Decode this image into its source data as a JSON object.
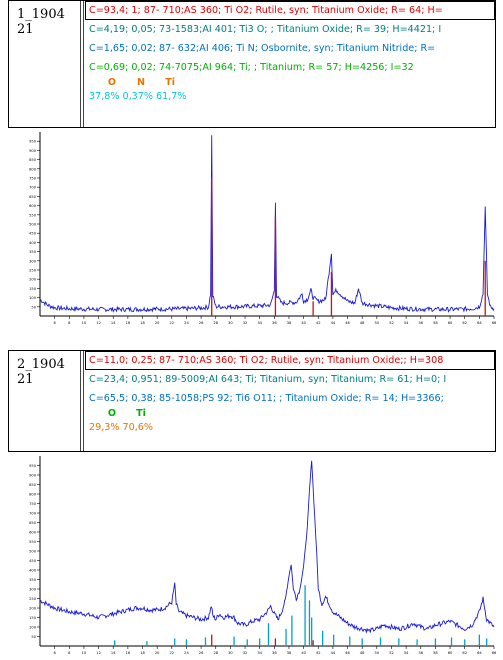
{
  "colors": {
    "pattern": "#1a1ad6",
    "stick_red": "#cc1010",
    "stick_cyan": "#00a2c8",
    "axis": "#000000",
    "phase_red": "#e00000",
    "phase_teal": "#008080",
    "phase_blue": "#0070c0",
    "phase_green": "#00b000",
    "elem_orange": "#e07800",
    "pct_cyan": "#00c8d8",
    "pct_orange": "#e07800"
  },
  "samples": [
    {
      "id_lines": [
        "1_1904",
        "21"
      ],
      "phases": [
        {
          "text": "C=93,4; 1;  87- 710;AS 360; Ti O2; Rutile, syn; Titanium Oxide; R= 64; H=",
          "color": "#e00000",
          "selected": true
        },
        {
          "text": "C=4,19; 0,05;  73-1583;AI 401; Ti3 O; ; Titanium Oxide; R= 39; H=4421; I",
          "color": "#008080",
          "selected": false
        },
        {
          "text": "C=1,65; 0,02;  87- 632;AI 406; Ti N; Osbornite, syn; Titanium Nitride; R=",
          "color": "#0070c0",
          "selected": false
        },
        {
          "text": "C=0,69; 0,02;  74-7075;AI 964; Ti; ; Titanium; R= 57; H=4256; I=32",
          "color": "#00b000",
          "selected": false
        }
      ],
      "elements": [
        "O",
        "N",
        "Ti"
      ],
      "percents": "37,8% 0,37% 61,7%",
      "percents_color": "#00c8d8"
    },
    {
      "id_lines": [
        "2_1904",
        "21"
      ],
      "phases": [
        {
          "text": "C=11,0; 0,25;  87- 710;AS 360; Ti O2; Rutile, syn; Titanium Oxide;; H=308",
          "color": "#e00000",
          "selected": true
        },
        {
          "text": "C=23,4; 0,951;  89-5009;AI 643; Ti; Titanium, syn; Titanium; R= 61; H=0; I",
          "color": "#008080",
          "selected": false
        },
        {
          "text": "C=65,5; 0,38;  85-1058;PS 92; Ti6 O11; ; Titanium Oxide; R= 14; H=3366;",
          "color": "#0070c0",
          "selected": false
        }
      ],
      "elements": [
        "O",
        "Ti"
      ],
      "percents": "29,3% 70,6%",
      "percents_color": "#e07800"
    }
  ],
  "chart_data": [
    {
      "type": "line",
      "xlim": [
        4,
        66
      ],
      "ylim": [
        0,
        1000
      ],
      "x_ticks": [
        "6",
        "8",
        "10",
        "12",
        "14",
        "16",
        "18",
        "20",
        "22",
        "24",
        "26",
        "28",
        "30",
        "32",
        "34",
        "36",
        "38",
        "40",
        "42",
        "44",
        "46",
        "48",
        "50",
        "52",
        "54",
        "56",
        "58",
        "60",
        "62",
        "64",
        "66"
      ],
      "y_ticks": [
        "50",
        "100",
        "150",
        "200",
        "250",
        "300",
        "350",
        "400",
        "450",
        "500",
        "550",
        "600",
        "650",
        "700",
        "750",
        "800",
        "850",
        "900",
        "950"
      ],
      "series": [
        {
          "points": [
            [
              4,
              90
            ],
            [
              5,
              60
            ],
            [
              6,
              45
            ],
            [
              7,
              42
            ],
            [
              8,
              40
            ],
            [
              10,
              38
            ],
            [
              12,
              36
            ],
            [
              14,
              36
            ],
            [
              16,
              36
            ],
            [
              18,
              37
            ],
            [
              20,
              38
            ],
            [
              22,
              38
            ],
            [
              24,
              40
            ],
            [
              26,
              44
            ],
            [
              27,
              48
            ],
            [
              27.3,
              120
            ],
            [
              27.45,
              980
            ],
            [
              27.6,
              110
            ],
            [
              28,
              52
            ],
            [
              29,
              50
            ],
            [
              30,
              50
            ],
            [
              32,
              52
            ],
            [
              34,
              55
            ],
            [
              35.5,
              60
            ],
            [
              36,
              140
            ],
            [
              36.15,
              620
            ],
            [
              36.3,
              110
            ],
            [
              37,
              70
            ],
            [
              38,
              72
            ],
            [
              39,
              75
            ],
            [
              39.8,
              120
            ],
            [
              40,
              80
            ],
            [
              40.5,
              90
            ],
            [
              41,
              140
            ],
            [
              41.3,
              100
            ],
            [
              42,
              80
            ],
            [
              43,
              90
            ],
            [
              43.8,
              340
            ],
            [
              44,
              120
            ],
            [
              44.5,
              140
            ],
            [
              45,
              120
            ],
            [
              46,
              80
            ],
            [
              47,
              70
            ],
            [
              47.5,
              150
            ],
            [
              48,
              70
            ],
            [
              50,
              55
            ],
            [
              52,
              45
            ],
            [
              54,
              40
            ],
            [
              56,
              38
            ],
            [
              58,
              36
            ],
            [
              60,
              36
            ],
            [
              62,
              38
            ],
            [
              63,
              40
            ],
            [
              64,
              50
            ],
            [
              64.5,
              120
            ],
            [
              64.8,
              595
            ],
            [
              65.1,
              120
            ],
            [
              65.5,
              50
            ],
            [
              66,
              40
            ]
          ]
        }
      ],
      "sticks": [
        {
          "x": 27.45,
          "y": 750,
          "color": "red"
        },
        {
          "x": 36.15,
          "y": 540,
          "color": "red"
        },
        {
          "x": 41.3,
          "y": 80,
          "color": "red"
        },
        {
          "x": 43.8,
          "y": 240,
          "color": "red"
        },
        {
          "x": 64.8,
          "y": 300,
          "color": "red"
        }
      ]
    },
    {
      "type": "line",
      "xlim": [
        4,
        66
      ],
      "ylim": [
        0,
        1000
      ],
      "x_ticks": [
        "6",
        "8",
        "10",
        "12",
        "14",
        "16",
        "18",
        "20",
        "22",
        "24",
        "26",
        "28",
        "30",
        "32",
        "34",
        "36",
        "38",
        "40",
        "42",
        "44",
        "46",
        "48",
        "50",
        "52",
        "54",
        "56",
        "58",
        "60",
        "62",
        "64",
        "66"
      ],
      "y_ticks": [
        "50",
        "100",
        "150",
        "200",
        "250",
        "300",
        "350",
        "400",
        "450",
        "500",
        "550",
        "600",
        "650",
        "700",
        "750",
        "800",
        "850",
        "900",
        "950"
      ],
      "series": [
        {
          "points": [
            [
              4,
              240
            ],
            [
              5,
              220
            ],
            [
              6,
              200
            ],
            [
              7,
              190
            ],
            [
              8,
              180
            ],
            [
              9,
              175
            ],
            [
              10,
              170
            ],
            [
              11,
              160
            ],
            [
              12,
              150
            ],
            [
              13,
              160
            ],
            [
              14,
              170
            ],
            [
              15,
              180
            ],
            [
              16,
              190
            ],
            [
              17,
              200
            ],
            [
              18,
              200
            ],
            [
              19,
              190
            ],
            [
              20,
              190
            ],
            [
              21,
              200
            ],
            [
              22,
              230
            ],
            [
              22.4,
              330
            ],
            [
              22.6,
              220
            ],
            [
              23,
              180
            ],
            [
              24,
              160
            ],
            [
              25,
              150
            ],
            [
              26,
              140
            ],
            [
              27,
              150
            ],
            [
              27.4,
              210
            ],
            [
              27.6,
              160
            ],
            [
              28,
              140
            ],
            [
              28.5,
              170
            ],
            [
              29,
              150
            ],
            [
              30,
              160
            ],
            [
              30.5,
              150
            ],
            [
              31,
              120
            ],
            [
              32,
              110
            ],
            [
              33,
              130
            ],
            [
              34,
              140
            ],
            [
              35,
              180
            ],
            [
              35.5,
              210
            ],
            [
              36,
              170
            ],
            [
              36.5,
              140
            ],
            [
              37,
              180
            ],
            [
              37.5,
              240
            ],
            [
              38,
              370
            ],
            [
              38.3,
              430
            ],
            [
              38.6,
              300
            ],
            [
              39,
              250
            ],
            [
              39.5,
              300
            ],
            [
              40,
              420
            ],
            [
              40.5,
              620
            ],
            [
              40.8,
              820
            ],
            [
              41.1,
              980
            ],
            [
              41.4,
              760
            ],
            [
              41.8,
              480
            ],
            [
              42,
              300
            ],
            [
              42.5,
              220
            ],
            [
              43,
              260
            ],
            [
              43.5,
              220
            ],
            [
              44,
              180
            ],
            [
              45,
              150
            ],
            [
              46,
              120
            ],
            [
              47,
              100
            ],
            [
              48,
              90
            ],
            [
              49,
              80
            ],
            [
              50,
              90
            ],
            [
              51,
              110
            ],
            [
              52,
              100
            ],
            [
              53,
              90
            ],
            [
              54,
              100
            ],
            [
              55,
              120
            ],
            [
              56,
              100
            ],
            [
              57,
              90
            ],
            [
              58,
              110
            ],
            [
              59,
              120
            ],
            [
              60,
              130
            ],
            [
              61,
              110
            ],
            [
              62,
              90
            ],
            [
              63,
              110
            ],
            [
              64,
              180
            ],
            [
              64.5,
              250
            ],
            [
              65,
              140
            ],
            [
              66,
              100
            ]
          ]
        }
      ],
      "sticks": [
        {
          "x": 27.45,
          "y": 60,
          "color": "red"
        },
        {
          "x": 36.15,
          "y": 40,
          "color": "red"
        },
        {
          "x": 41.3,
          "y": 30,
          "color": "red"
        },
        {
          "x": 14.2,
          "y": 30,
          "color": "cyan"
        },
        {
          "x": 18.6,
          "y": 25,
          "color": "cyan"
        },
        {
          "x": 22.4,
          "y": 40,
          "color": "cyan"
        },
        {
          "x": 24.0,
          "y": 35,
          "color": "cyan"
        },
        {
          "x": 26.6,
          "y": 45,
          "color": "cyan"
        },
        {
          "x": 30.5,
          "y": 50,
          "color": "cyan"
        },
        {
          "x": 32.3,
          "y": 35,
          "color": "cyan"
        },
        {
          "x": 34.0,
          "y": 40,
          "color": "cyan"
        },
        {
          "x": 35.2,
          "y": 120,
          "color": "cyan"
        },
        {
          "x": 37.6,
          "y": 90,
          "color": "cyan"
        },
        {
          "x": 38.4,
          "y": 160,
          "color": "cyan"
        },
        {
          "x": 40.2,
          "y": 320,
          "color": "cyan"
        },
        {
          "x": 40.8,
          "y": 240,
          "color": "cyan"
        },
        {
          "x": 41.1,
          "y": 150,
          "color": "cyan"
        },
        {
          "x": 42.6,
          "y": 80,
          "color": "cyan"
        },
        {
          "x": 44.1,
          "y": 60,
          "color": "cyan"
        },
        {
          "x": 46.3,
          "y": 50,
          "color": "cyan"
        },
        {
          "x": 48.0,
          "y": 40,
          "color": "cyan"
        },
        {
          "x": 50.5,
          "y": 45,
          "color": "cyan"
        },
        {
          "x": 53.0,
          "y": 40,
          "color": "cyan"
        },
        {
          "x": 55.5,
          "y": 35,
          "color": "cyan"
        },
        {
          "x": 58.0,
          "y": 40,
          "color": "cyan"
        },
        {
          "x": 60.2,
          "y": 45,
          "color": "cyan"
        },
        {
          "x": 62.0,
          "y": 35,
          "color": "cyan"
        },
        {
          "x": 64.0,
          "y": 60,
          "color": "cyan"
        },
        {
          "x": 65.0,
          "y": 40,
          "color": "cyan"
        }
      ]
    }
  ]
}
